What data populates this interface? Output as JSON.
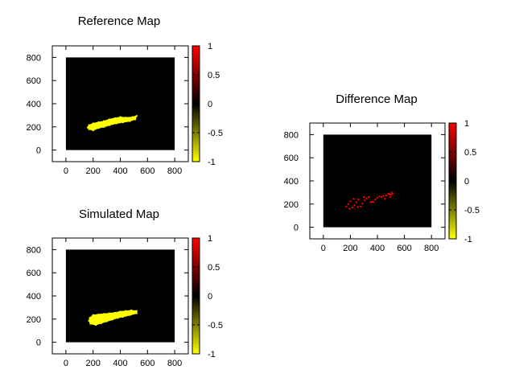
{
  "chart_data": [
    {
      "type": "heatmap",
      "title": "Reference Map",
      "xlim": [
        -100,
        900
      ],
      "ylim": [
        -100,
        900
      ],
      "xticks": [
        0,
        200,
        400,
        600,
        800
      ],
      "yticks": [
        0,
        200,
        400,
        600,
        800
      ],
      "field_extent": {
        "x": [
          0,
          800
        ],
        "y": [
          0,
          800
        ]
      },
      "field_value": 0,
      "colorbar": {
        "range": [
          -1,
          1
        ],
        "ticks": [
          1,
          0.5,
          0,
          -0.5,
          -1
        ],
        "colors": {
          "-1": "#ffff00",
          "0": "#000000",
          "1": "#ff0000"
        }
      },
      "region": {
        "value": -1,
        "color": "#ffff00",
        "outline": [
          [
            170,
            180
          ],
          [
            200,
            170
          ],
          [
            240,
            190
          ],
          [
            280,
            200
          ],
          [
            320,
            215
          ],
          [
            370,
            230
          ],
          [
            420,
            240
          ],
          [
            470,
            250
          ],
          [
            510,
            265
          ],
          [
            520,
            295
          ],
          [
            490,
            285
          ],
          [
            440,
            280
          ],
          [
            400,
            285
          ],
          [
            360,
            275
          ],
          [
            320,
            265
          ],
          [
            280,
            250
          ],
          [
            240,
            240
          ],
          [
            200,
            230
          ],
          [
            170,
            215
          ],
          [
            160,
            195
          ]
        ]
      }
    },
    {
      "type": "heatmap",
      "title": "Simulated Map",
      "xlim": [
        -100,
        900
      ],
      "ylim": [
        -100,
        900
      ],
      "xticks": [
        0,
        200,
        400,
        600,
        800
      ],
      "yticks": [
        0,
        200,
        400,
        600,
        800
      ],
      "field_extent": {
        "x": [
          0,
          800
        ],
        "y": [
          0,
          800
        ]
      },
      "field_value": 0,
      "colorbar": {
        "range": [
          -1,
          1
        ],
        "ticks": [
          1,
          0.5,
          0,
          -0.5,
          -1
        ],
        "colors": {
          "-1": "#ffff00",
          "0": "#000000",
          "1": "#ff0000"
        }
      },
      "region": {
        "value": -1,
        "color": "#ffff00",
        "outline": [
          [
            180,
            160
          ],
          [
            220,
            150
          ],
          [
            260,
            165
          ],
          [
            300,
            180
          ],
          [
            340,
            195
          ],
          [
            380,
            210
          ],
          [
            420,
            220
          ],
          [
            470,
            235
          ],
          [
            520,
            250
          ],
          [
            520,
            270
          ],
          [
            480,
            275
          ],
          [
            440,
            270
          ],
          [
            400,
            265
          ],
          [
            360,
            255
          ],
          [
            320,
            250
          ],
          [
            280,
            245
          ],
          [
            240,
            240
          ],
          [
            200,
            235
          ],
          [
            175,
            210
          ],
          [
            170,
            185
          ]
        ]
      }
    },
    {
      "type": "heatmap",
      "title": "Difference Map",
      "xlim": [
        -100,
        900
      ],
      "ylim": [
        -100,
        900
      ],
      "xticks": [
        0,
        200,
        400,
        600,
        800
      ],
      "yticks": [
        0,
        200,
        400,
        600,
        800
      ],
      "field_extent": {
        "x": [
          0,
          800
        ],
        "y": [
          0,
          800
        ]
      },
      "field_value": 0,
      "colorbar": {
        "range": [
          -1,
          1
        ],
        "ticks": [
          1,
          0.5,
          0,
          -0.5,
          -1
        ],
        "colors": {
          "-1": "#ffff00",
          "0": "#000000",
          "1": "#ff0000"
        }
      },
      "points": {
        "value": 1,
        "color": "#ff0000",
        "xy": [
          [
            170,
            180
          ],
          [
            185,
            200
          ],
          [
            200,
            225
          ],
          [
            215,
            170
          ],
          [
            230,
            190
          ],
          [
            245,
            215
          ],
          [
            260,
            240
          ],
          [
            275,
            180
          ],
          [
            290,
            205
          ],
          [
            305,
            230
          ],
          [
            320,
            250
          ],
          [
            335,
            260
          ],
          [
            350,
            215
          ],
          [
            360,
            220
          ],
          [
            370,
            218
          ],
          [
            385,
            240
          ],
          [
            400,
            255
          ],
          [
            415,
            265
          ],
          [
            430,
            262
          ],
          [
            445,
            270
          ],
          [
            455,
            245
          ],
          [
            465,
            275
          ],
          [
            480,
            290
          ],
          [
            490,
            285
          ],
          [
            500,
            280
          ],
          [
            505,
            300
          ],
          [
            510,
            290
          ],
          [
            495,
            260
          ],
          [
            225,
            245
          ],
          [
            300,
            260
          ],
          [
            195,
            160
          ],
          [
            255,
            175
          ]
        ]
      }
    }
  ]
}
